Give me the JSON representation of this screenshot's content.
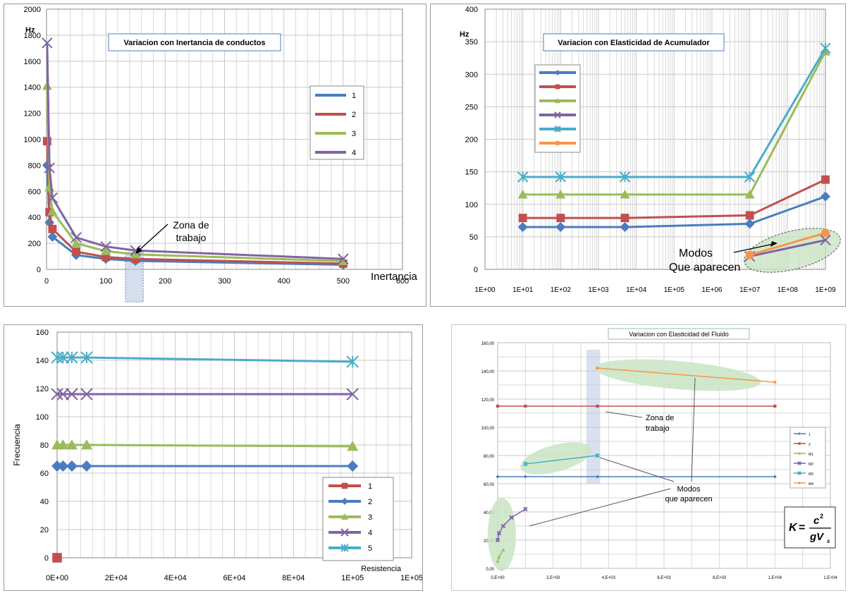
{
  "colors": {
    "s1": "#4a7dbf",
    "s2": "#c0504d",
    "s3": "#9bbb59",
    "s4": "#8064a2",
    "s5": "#4bacc6",
    "s6": "#f79646",
    "grid": "#c8c8c8",
    "grid_minor": "#dadada",
    "ellipse": "#c9e4c3",
    "band": "#b9c9e3"
  },
  "chart_data": [
    {
      "type": "line",
      "title": "Variacion con Inertancia de conductos",
      "ylabel": "Hz",
      "xlabel": "Inertancia",
      "xlim": [
        0,
        600
      ],
      "ylim": [
        0,
        2000
      ],
      "xticks": [
        "0",
        "100",
        "200",
        "300",
        "400",
        "500",
        "600"
      ],
      "yticks": [
        "0",
        "200",
        "400",
        "600",
        "800",
        "1000",
        "1200",
        "1400",
        "1600",
        "1800",
        "2000"
      ],
      "legend_position": "right",
      "annotations": [
        "Zona de",
        "trabajo"
      ],
      "series": [
        {
          "name": "1",
          "marker": "diamond",
          "x": [
            1,
            5,
            10,
            50,
            100,
            150,
            500
          ],
          "y": [
            800,
            360,
            250,
            110,
            80,
            65,
            35
          ]
        },
        {
          "name": "2",
          "marker": "square",
          "x": [
            1,
            5,
            10,
            50,
            100,
            150,
            500
          ],
          "y": [
            985,
            440,
            310,
            135,
            95,
            80,
            44
          ]
        },
        {
          "name": "3",
          "marker": "triangle",
          "x": [
            1,
            5,
            10,
            50,
            100,
            150,
            500
          ],
          "y": [
            1410,
            630,
            445,
            200,
            140,
            115,
            63
          ]
        },
        {
          "name": "4",
          "marker": "x",
          "x": [
            1,
            5,
            10,
            50,
            100,
            150,
            500
          ],
          "y": [
            1740,
            780,
            550,
            245,
            175,
            145,
            80
          ]
        }
      ]
    },
    {
      "type": "line",
      "title": "Variacion con Elasticidad de Acumulador",
      "ylabel": "Hz",
      "xscale": "log",
      "xlim": [
        1,
        1000000000
      ],
      "ylim": [
        0,
        400
      ],
      "xticks": [
        "1E+00",
        "1E+01",
        "1E+02",
        "1E+03",
        "1E+04",
        "1E+05",
        "1E+06",
        "1E+07",
        "1E+08",
        "1E+09"
      ],
      "yticks": [
        "0",
        "50",
        "100",
        "150",
        "200",
        "250",
        "300",
        "350",
        "400"
      ],
      "legend_position": "left",
      "annotations": [
        "Modos",
        "Que aparecen"
      ],
      "series": [
        {
          "marker": "diamond",
          "x": [
            10,
            100,
            5000,
            10000000,
            1000000000
          ],
          "y": [
            65,
            65,
            65,
            70,
            112
          ]
        },
        {
          "marker": "square",
          "x": [
            10,
            100,
            5000,
            10000000,
            1000000000
          ],
          "y": [
            79,
            79,
            79,
            83,
            138
          ]
        },
        {
          "marker": "triangle",
          "x": [
            10,
            100,
            5000,
            10000000,
            1000000000
          ],
          "y": [
            115,
            115,
            115,
            115,
            335
          ]
        },
        {
          "marker": "x",
          "x": [
            10000000,
            1000000000
          ],
          "y": [
            20,
            45
          ]
        },
        {
          "marker": "star",
          "x": [
            10,
            100,
            5000,
            10000000,
            1000000000
          ],
          "y": [
            142,
            142,
            142,
            142,
            340
          ]
        },
        {
          "marker": "circle",
          "x": [
            10000000,
            1000000000
          ],
          "y": [
            22,
            56
          ]
        }
      ]
    },
    {
      "type": "line",
      "ylabel": "Frecuencia",
      "xlabel": "Resistencia",
      "xlim": [
        0,
        120000
      ],
      "ylim": [
        0,
        160
      ],
      "xticks": [
        "0E+00",
        "2E+04",
        "4E+04",
        "6E+04",
        "8E+04",
        "1E+05",
        "1E+05"
      ],
      "yticks": [
        "0",
        "20",
        "40",
        "60",
        "80",
        "100",
        "120",
        "140",
        "160"
      ],
      "legend_position": "bottom-right",
      "series": [
        {
          "name": "1",
          "marker": "square",
          "x": [
            0
          ],
          "y": [
            0
          ]
        },
        {
          "name": "2",
          "marker": "diamond",
          "x": [
            0,
            2000,
            5000,
            10000,
            100000
          ],
          "y": [
            65,
            65,
            65,
            65,
            65
          ]
        },
        {
          "name": "3",
          "marker": "triangle",
          "x": [
            0,
            2000,
            5000,
            10000,
            100000
          ],
          "y": [
            80,
            80,
            80,
            80,
            79
          ]
        },
        {
          "name": "4",
          "marker": "x",
          "x": [
            0,
            2000,
            5000,
            10000,
            100000
          ],
          "y": [
            116,
            116,
            116,
            116,
            116
          ]
        },
        {
          "name": "5",
          "marker": "star",
          "x": [
            0,
            2000,
            5000,
            10000,
            100000
          ],
          "y": [
            142,
            142,
            142,
            142,
            139
          ]
        }
      ]
    },
    {
      "type": "line",
      "title": "Variacion con Elasticidad del Fluido",
      "xlim": [
        0,
        12000
      ],
      "ylim": [
        0,
        160
      ],
      "xticks": [
        "0,E+00",
        "2,E+03",
        "4,E+03",
        "6,E+03",
        "8,E+03",
        "1,E+04",
        "1,E+04"
      ],
      "yticks": [
        "0,00",
        "20,00",
        "40,00",
        "60,00",
        "80,00",
        "100,00",
        "120,00",
        "140,00",
        "160,00"
      ],
      "legend_position": "right",
      "annotations": [
        "Zona de",
        "trabajo",
        "Modos",
        "que aparecen"
      ],
      "formula": {
        "lhs": "K",
        "num": "c",
        "num_exp": "2",
        "den": "gV",
        "den_sub": "s"
      },
      "series": [
        {
          "name": "1",
          "marker": "diamond",
          "x": [
            0,
            1000,
            3600,
            10000
          ],
          "y": [
            65,
            65,
            65,
            65
          ]
        },
        {
          "name": "2",
          "marker": "square",
          "x": [
            0,
            1000,
            3600,
            10000
          ],
          "y": [
            115,
            115,
            115,
            115
          ]
        },
        {
          "name": "M1",
          "marker": "triangle",
          "x": [
            0,
            50,
            200
          ],
          "y": [
            5,
            8,
            13
          ]
        },
        {
          "name": "M2",
          "marker": "x",
          "x": [
            0,
            50,
            200,
            500,
            1000
          ],
          "y": [
            20,
            25,
            30,
            36,
            42
          ]
        },
        {
          "name": "M3",
          "marker": "star",
          "x": [
            1000,
            3600
          ],
          "y": [
            74,
            80
          ]
        },
        {
          "name": "M4",
          "marker": "circle",
          "x": [
            3600,
            10000
          ],
          "y": [
            142,
            132
          ]
        }
      ]
    }
  ]
}
